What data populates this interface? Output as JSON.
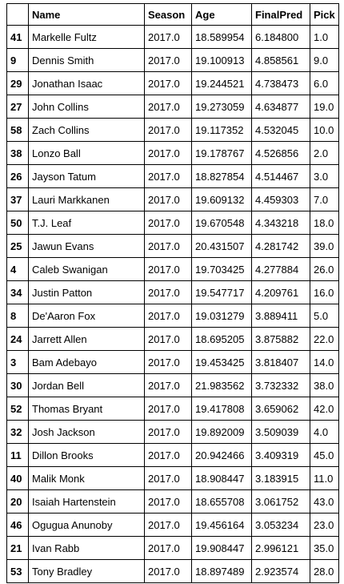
{
  "table": {
    "columns": [
      "",
      "Name",
      "Season",
      "Age",
      "FinalPred",
      "Pick"
    ],
    "rows": [
      {
        "index": "41",
        "name": "Markelle Fultz",
        "season": "2017.0",
        "age": "18.589954",
        "finalpred": "6.184800",
        "pick": "1.0"
      },
      {
        "index": "9",
        "name": "Dennis Smith",
        "season": "2017.0",
        "age": "19.100913",
        "finalpred": "4.858561",
        "pick": "9.0"
      },
      {
        "index": "29",
        "name": "Jonathan Isaac",
        "season": "2017.0",
        "age": "19.244521",
        "finalpred": "4.738473",
        "pick": "6.0"
      },
      {
        "index": "27",
        "name": "John Collins",
        "season": "2017.0",
        "age": "19.273059",
        "finalpred": "4.634877",
        "pick": "19.0"
      },
      {
        "index": "58",
        "name": "Zach Collins",
        "season": "2017.0",
        "age": "19.117352",
        "finalpred": "4.532045",
        "pick": "10.0"
      },
      {
        "index": "38",
        "name": "Lonzo Ball",
        "season": "2017.0",
        "age": "19.178767",
        "finalpred": "4.526856",
        "pick": "2.0"
      },
      {
        "index": "26",
        "name": "Jayson Tatum",
        "season": "2017.0",
        "age": "18.827854",
        "finalpred": "4.514467",
        "pick": "3.0"
      },
      {
        "index": "37",
        "name": "Lauri Markkanen",
        "season": "2017.0",
        "age": "19.609132",
        "finalpred": "4.459303",
        "pick": "7.0"
      },
      {
        "index": "50",
        "name": "T.J. Leaf",
        "season": "2017.0",
        "age": "19.670548",
        "finalpred": "4.343218",
        "pick": "18.0"
      },
      {
        "index": "25",
        "name": "Jawun Evans",
        "season": "2017.0",
        "age": "20.431507",
        "finalpred": "4.281742",
        "pick": "39.0"
      },
      {
        "index": "4",
        "name": "Caleb Swanigan",
        "season": "2017.0",
        "age": "19.703425",
        "finalpred": "4.277884",
        "pick": "26.0"
      },
      {
        "index": "34",
        "name": "Justin Patton",
        "season": "2017.0",
        "age": "19.547717",
        "finalpred": "4.209761",
        "pick": "16.0"
      },
      {
        "index": "8",
        "name": "De'Aaron Fox",
        "season": "2017.0",
        "age": "19.031279",
        "finalpred": "3.889411",
        "pick": "5.0"
      },
      {
        "index": "24",
        "name": "Jarrett Allen",
        "season": "2017.0",
        "age": "18.695205",
        "finalpred": "3.875882",
        "pick": "22.0"
      },
      {
        "index": "3",
        "name": "Bam Adebayo",
        "season": "2017.0",
        "age": "19.453425",
        "finalpred": "3.818407",
        "pick": "14.0"
      },
      {
        "index": "30",
        "name": "Jordan Bell",
        "season": "2017.0",
        "age": "21.983562",
        "finalpred": "3.732332",
        "pick": "38.0"
      },
      {
        "index": "52",
        "name": "Thomas Bryant",
        "season": "2017.0",
        "age": "19.417808",
        "finalpred": "3.659062",
        "pick": "42.0"
      },
      {
        "index": "32",
        "name": "Josh Jackson",
        "season": "2017.0",
        "age": "19.892009",
        "finalpred": "3.509039",
        "pick": "4.0"
      },
      {
        "index": "11",
        "name": "Dillon Brooks",
        "season": "2017.0",
        "age": "20.942466",
        "finalpred": "3.409319",
        "pick": "45.0"
      },
      {
        "index": "40",
        "name": "Malik Monk",
        "season": "2017.0",
        "age": "18.908447",
        "finalpred": "3.183915",
        "pick": "11.0"
      },
      {
        "index": "20",
        "name": "Isaiah Hartenstein",
        "season": "2017.0",
        "age": "18.655708",
        "finalpred": "3.061752",
        "pick": "43.0"
      },
      {
        "index": "46",
        "name": "Ogugua Anunoby",
        "season": "2017.0",
        "age": "19.456164",
        "finalpred": "3.053234",
        "pick": "23.0"
      },
      {
        "index": "21",
        "name": "Ivan Rabb",
        "season": "2017.0",
        "age": "19.908447",
        "finalpred": "2.996121",
        "pick": "35.0"
      },
      {
        "index": "53",
        "name": "Tony Bradley",
        "season": "2017.0",
        "age": "18.897489",
        "finalpred": "2.923574",
        "pick": "28.0"
      }
    ]
  }
}
